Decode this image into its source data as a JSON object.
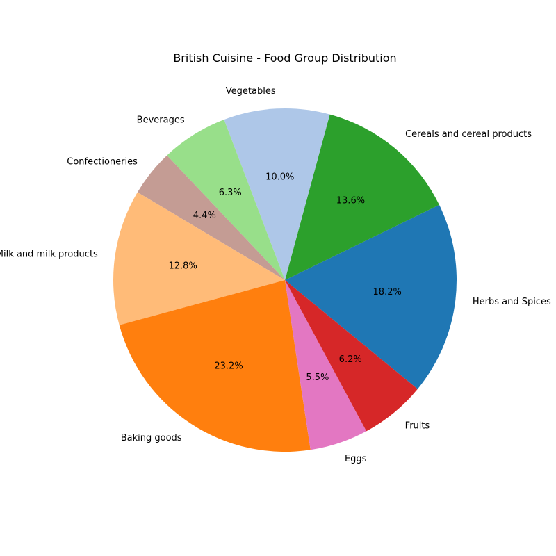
{
  "chart_data": {
    "type": "pie",
    "title": "British Cuisine - Food Group Distribution",
    "categories": [
      "Herbs and Spices",
      "Cereals and cereal products",
      "Vegetables",
      "Beverages",
      "Confectioneries",
      "Milk and milk products",
      "Baking goods",
      "Eggs",
      "Fruits"
    ],
    "values": [
      18.2,
      13.6,
      10.0,
      6.3,
      4.4,
      12.8,
      23.2,
      5.5,
      6.2
    ],
    "percent_labels": [
      "18.2%",
      "13.6%",
      "10.0%",
      "6.3%",
      "4.4%",
      "12.8%",
      "23.2%",
      "5.5%",
      "6.2%"
    ],
    "colors": [
      "#1f77b4",
      "#2ca02c",
      "#aec7e8",
      "#98df8a",
      "#c49c94",
      "#ffbb78",
      "#ff7f0e",
      "#e377c2",
      "#d62728"
    ],
    "start_angle_deg": -39.4,
    "direction": "counterclockwise",
    "legend": "none"
  }
}
